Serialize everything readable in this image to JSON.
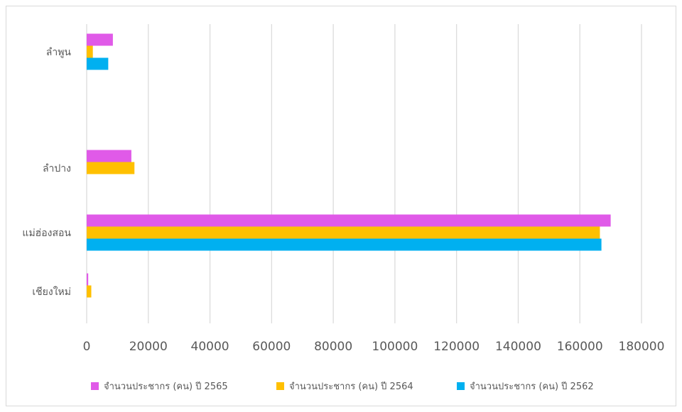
{
  "chart_data": {
    "type": "bar",
    "orientation": "horizontal",
    "categories": [
      "ลำพูน",
      "ลำปาง",
      "แม่ฮ่องสอน",
      "เชียงใหม่"
    ],
    "series": [
      {
        "name": "จำนวนประชากร (คน) ปี 2565",
        "color": "#e05ae8",
        "values": [
          8500,
          14500,
          170000,
          500
        ]
      },
      {
        "name": "จำนวนประชากร (คน) ปี 2564",
        "color": "#ffc000",
        "values": [
          2000,
          15500,
          166500,
          1500
        ]
      },
      {
        "name": "จำนวนประชากร (คน) ปี 2562",
        "color": "#00b0f0",
        "values": [
          7000,
          0,
          167000,
          0
        ]
      }
    ],
    "xlim": [
      0,
      180000
    ],
    "xticks": [
      0,
      20000,
      40000,
      60000,
      80000,
      100000,
      120000,
      140000,
      160000,
      180000
    ],
    "grid": "vertical",
    "legend": "bottom"
  }
}
